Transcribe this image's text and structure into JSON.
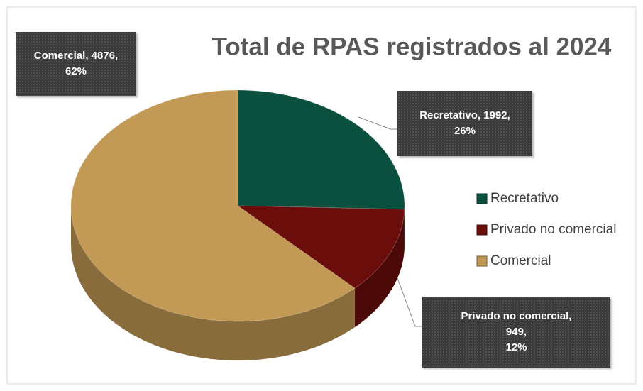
{
  "chart_data": {
    "type": "pie",
    "title": "Total de RPAS registrados al 2024",
    "categories": [
      "Recretativo",
      "Privado no comercial",
      "Comercial"
    ],
    "values": [
      1992,
      949,
      4876
    ],
    "value_labels": [
      "Recretativo, 1992,\n26%",
      "Privado no comercial,\n949,\n12%",
      "Comercial, 4876,\n62%"
    ],
    "colors": [
      "#0b4f3f",
      "#6b0d0b",
      "#c39a55"
    ],
    "legend": "right"
  }
}
